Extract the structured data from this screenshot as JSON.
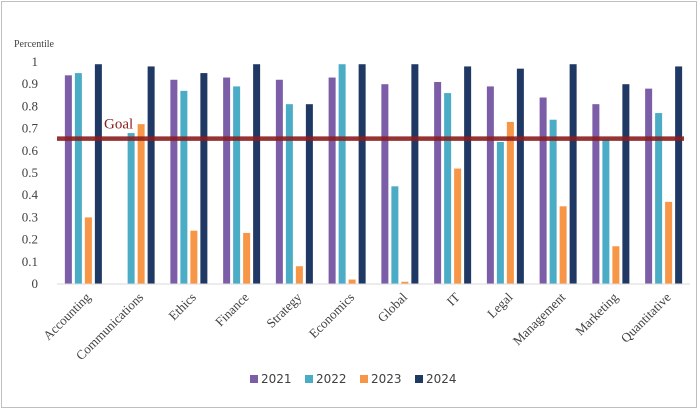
{
  "chart_data": {
    "type": "bar",
    "title": "",
    "ylabel": "Percentile",
    "xlabel": "",
    "ylim": [
      0,
      1
    ],
    "yticks": [
      "0",
      "0.1",
      "0.2",
      "0.3",
      "0.4",
      "0.5",
      "0.6",
      "0.7",
      "0.8",
      "0.9",
      "1"
    ],
    "grid": false,
    "legend_position": "bottom",
    "categories": [
      "Accounting",
      "Communications",
      "Ethics",
      "Finance",
      "Strategy",
      "Economics",
      "Global",
      "IT",
      "Legal",
      "Management",
      "Marketing",
      "Quantitative"
    ],
    "series": [
      {
        "name": "2021",
        "color": "#7b5ea7",
        "values": [
          0.94,
          null,
          0.92,
          0.93,
          0.92,
          0.93,
          0.9,
          0.91,
          0.89,
          0.84,
          0.81,
          0.88
        ]
      },
      {
        "name": "2022",
        "color": "#4bacc6",
        "values": [
          0.95,
          0.68,
          0.87,
          0.89,
          0.81,
          0.99,
          0.44,
          0.86,
          0.64,
          0.74,
          0.65,
          0.77
        ]
      },
      {
        "name": "2023",
        "color": "#f79646",
        "values": [
          0.3,
          0.72,
          0.24,
          0.23,
          0.08,
          0.02,
          0.01,
          0.52,
          0.73,
          0.35,
          0.17,
          0.37
        ]
      },
      {
        "name": "2024",
        "color": "#1f3864",
        "values": [
          0.99,
          0.98,
          0.95,
          0.99,
          0.81,
          0.99,
          0.99,
          0.98,
          0.97,
          0.99,
          0.9,
          0.98
        ]
      }
    ],
    "goal": {
      "label": "Goal",
      "value": 0.655,
      "color": "#8b1e1e"
    }
  }
}
